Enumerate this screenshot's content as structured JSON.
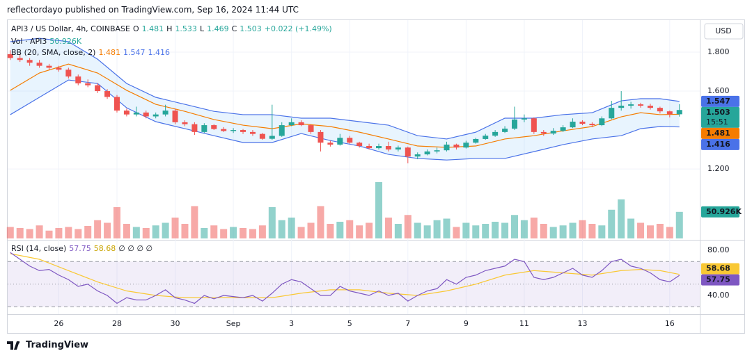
{
  "header": {
    "publisher": "reflectordayo published on TradingView.com, Sep 16, 2024 11:44 UTC",
    "footer": "TradingView"
  },
  "chart_data": {
    "type": "candlestick",
    "title": "API3 / US Dollar, 4h, COINBASE",
    "ohlc_labels": [
      "O",
      "H",
      "L",
      "C"
    ],
    "change": "+0.022 (+1.49%)",
    "currency": "USD",
    "countdown": "15:51",
    "grid": true,
    "x": [
      0,
      1,
      2,
      3,
      4,
      5,
      6,
      7,
      8,
      9,
      10,
      11,
      12,
      13,
      14,
      15,
      16,
      17,
      18,
      19,
      20,
      21,
      22,
      23,
      24,
      25,
      26,
      27,
      28,
      29,
      30,
      31,
      32,
      33,
      34,
      35,
      36,
      37,
      38,
      39,
      40,
      41,
      42,
      43,
      44,
      45,
      46,
      47,
      48,
      49,
      50,
      51,
      52,
      53,
      54,
      55,
      56,
      57,
      58,
      59,
      60,
      61,
      62,
      63,
      64,
      65,
      66,
      67,
      68,
      69
    ],
    "xlim": [
      -0.2,
      71.1
    ],
    "xticks": [
      {
        "value": 5,
        "label": "26"
      },
      {
        "value": 11,
        "label": "28"
      },
      {
        "value": 17,
        "label": "30"
      },
      {
        "value": 23,
        "label": "Sep"
      },
      {
        "value": 29,
        "label": "3"
      },
      {
        "value": 35,
        "label": "5"
      },
      {
        "value": 41,
        "label": "7"
      },
      {
        "value": 47,
        "label": "9"
      },
      {
        "value": 53,
        "label": "11"
      },
      {
        "value": 59,
        "label": "13"
      },
      {
        "value": 68,
        "label": "16"
      }
    ],
    "open": [
      1.79,
      1.77,
      1.76,
      1.746,
      1.73,
      1.72,
      1.71,
      1.675,
      1.64,
      1.63,
      1.6,
      1.57,
      1.5,
      1.48,
      1.49,
      1.47,
      1.48,
      1.5,
      1.44,
      1.43,
      1.39,
      1.425,
      1.405,
      1.395,
      1.4,
      1.39,
      1.38,
      1.355,
      1.37,
      1.425,
      1.44,
      1.425,
      1.39,
      1.335,
      1.325,
      1.36,
      1.335,
      1.318,
      1.307,
      1.318,
      1.3,
      1.31,
      1.264,
      1.275,
      1.29,
      1.296,
      1.325,
      1.31,
      1.335,
      1.354,
      1.371,
      1.39,
      1.407,
      1.454,
      1.46,
      1.39,
      1.382,
      1.396,
      1.414,
      1.443,
      1.432,
      1.425,
      1.46,
      1.514,
      1.525,
      1.532,
      1.525,
      1.514,
      1.496,
      1.481
    ],
    "high": [
      1.81,
      1.79,
      1.77,
      1.76,
      1.74,
      1.73,
      1.72,
      1.685,
      1.66,
      1.64,
      1.61,
      1.58,
      1.51,
      1.52,
      1.5,
      1.49,
      1.53,
      1.51,
      1.45,
      1.44,
      1.435,
      1.43,
      1.415,
      1.41,
      1.405,
      1.4,
      1.385,
      1.53,
      1.44,
      1.46,
      1.45,
      1.43,
      1.4,
      1.345,
      1.38,
      1.37,
      1.34,
      1.33,
      1.33,
      1.34,
      1.32,
      1.315,
      1.285,
      1.3,
      1.31,
      1.34,
      1.33,
      1.345,
      1.36,
      1.38,
      1.4,
      1.42,
      1.52,
      1.48,
      1.465,
      1.4,
      1.41,
      1.425,
      1.46,
      1.45,
      1.44,
      1.47,
      1.55,
      1.6,
      1.545,
      1.54,
      1.535,
      1.52,
      1.5,
      1.533
    ],
    "low": [
      1.76,
      1.75,
      1.73,
      1.72,
      1.71,
      1.7,
      1.665,
      1.63,
      1.62,
      1.59,
      1.56,
      1.49,
      1.47,
      1.47,
      1.46,
      1.46,
      1.47,
      1.43,
      1.42,
      1.375,
      1.385,
      1.4,
      1.39,
      1.385,
      1.38,
      1.37,
      1.35,
      1.35,
      1.365,
      1.42,
      1.42,
      1.38,
      1.29,
      1.315,
      1.32,
      1.33,
      1.31,
      1.3,
      1.3,
      1.29,
      1.29,
      1.229,
      1.25,
      1.27,
      1.28,
      1.29,
      1.3,
      1.305,
      1.33,
      1.35,
      1.365,
      1.385,
      1.4,
      1.44,
      1.38,
      1.37,
      1.375,
      1.39,
      1.41,
      1.425,
      1.415,
      1.42,
      1.455,
      1.5,
      1.51,
      1.515,
      1.505,
      1.485,
      1.465,
      1.469
    ],
    "close": [
      1.77,
      1.76,
      1.746,
      1.73,
      1.72,
      1.71,
      1.675,
      1.64,
      1.63,
      1.6,
      1.57,
      1.5,
      1.48,
      1.49,
      1.47,
      1.48,
      1.5,
      1.44,
      1.43,
      1.39,
      1.425,
      1.405,
      1.395,
      1.4,
      1.39,
      1.38,
      1.355,
      1.37,
      1.425,
      1.44,
      1.425,
      1.39,
      1.335,
      1.325,
      1.36,
      1.335,
      1.318,
      1.307,
      1.318,
      1.3,
      1.31,
      1.264,
      1.275,
      1.29,
      1.296,
      1.325,
      1.31,
      1.335,
      1.354,
      1.371,
      1.39,
      1.407,
      1.454,
      1.46,
      1.39,
      1.382,
      1.396,
      1.414,
      1.443,
      1.432,
      1.425,
      1.46,
      1.514,
      1.525,
      1.532,
      1.525,
      1.514,
      1.496,
      1.481,
      1.503
    ],
    "up_color": "#26a69a",
    "down_color": "#ef5350",
    "ylim": [
      0.836,
      1.968
    ],
    "yticks": [
      {
        "value": 1.2,
        "label": "1.200"
      },
      {
        "value": 1.6,
        "label": "1.600"
      },
      {
        "value": 1.8,
        "label": "1.800"
      }
    ],
    "volume": {
      "name": "Vol · API3",
      "ylim": [
        0,
        140
      ],
      "values": [
        22,
        20,
        18,
        25,
        15,
        20,
        22,
        18,
        24,
        35,
        30,
        60,
        28,
        22,
        20,
        25,
        30,
        40,
        28,
        62,
        20,
        25,
        18,
        22,
        20,
        18,
        25,
        60,
        35,
        40,
        22,
        30,
        62,
        28,
        32,
        35,
        25,
        30,
        108,
        40,
        28,
        45,
        30,
        25,
        35,
        38,
        22,
        30,
        25,
        28,
        32,
        30,
        45,
        35,
        40,
        28,
        22,
        25,
        30,
        35,
        28,
        25,
        55,
        75,
        38,
        30,
        25,
        28,
        22,
        50.926
      ],
      "value_labels": [
        null,
        null,
        null,
        null,
        null,
        null,
        null,
        null,
        null,
        null,
        null,
        null,
        null,
        null,
        null,
        null,
        null,
        null,
        null,
        null,
        null,
        null,
        null,
        null,
        null,
        null,
        null,
        null,
        null,
        null,
        null,
        null,
        null,
        null,
        null,
        null,
        null,
        null,
        null,
        null,
        null,
        null,
        null,
        null,
        null,
        null,
        null,
        null,
        null,
        null,
        null,
        null,
        null,
        null,
        null,
        null,
        null,
        null,
        null,
        null,
        null,
        null,
        null,
        null,
        null,
        null,
        null,
        null,
        null,
        "50.926K"
      ]
    },
    "bollinger": {
      "name": "BB (20, SMA, close, 2)",
      "basis_color": "#f57c00",
      "band_color": "#4a72e8",
      "x": [
        0,
        3,
        6,
        9,
        12,
        15,
        18,
        21,
        24,
        27,
        30,
        33,
        36,
        39,
        42,
        45,
        48,
        51,
        54,
        57,
        60,
        63,
        65,
        67,
        69
      ],
      "upper": [
        1.854,
        1.871,
        1.854,
        1.764,
        1.639,
        1.568,
        1.532,
        1.496,
        1.479,
        1.479,
        1.461,
        1.461,
        1.443,
        1.425,
        1.371,
        1.354,
        1.389,
        1.461,
        1.461,
        1.479,
        1.489,
        1.55,
        1.561,
        1.561,
        1.547
      ],
      "basis": [
        1.604,
        1.693,
        1.739,
        1.693,
        1.604,
        1.532,
        1.496,
        1.454,
        1.425,
        1.407,
        1.432,
        1.418,
        1.389,
        1.354,
        1.318,
        1.311,
        1.318,
        1.354,
        1.371,
        1.396,
        1.418,
        1.468,
        1.489,
        1.479,
        1.481
      ],
      "lower": [
        1.479,
        1.568,
        1.657,
        1.639,
        1.514,
        1.443,
        1.407,
        1.371,
        1.336,
        1.336,
        1.382,
        1.346,
        1.318,
        1.275,
        1.254,
        1.246,
        1.254,
        1.254,
        1.289,
        1.325,
        1.354,
        1.371,
        1.407,
        1.418,
        1.416
      ]
    },
    "rsi": {
      "name": "RSI (14, close)",
      "color": "#7e57c2",
      "ma_color": "#f9c834",
      "extra": "∅ ∅ ∅ ∅",
      "ylim": [
        23.4,
        88
      ],
      "yticks": [
        {
          "value": 40,
          "label": "40.00"
        },
        {
          "value": 80,
          "label": "80.00"
        }
      ],
      "levels": [
        30,
        50,
        70
      ],
      "values": [
        78,
        72,
        66,
        62,
        63,
        58,
        54,
        48,
        50,
        44,
        40,
        33,
        38,
        36,
        36,
        40,
        45,
        38,
        36,
        33,
        40,
        37,
        40,
        39,
        38,
        40,
        35,
        42,
        50,
        54,
        52,
        46,
        40,
        40,
        48,
        44,
        42,
        40,
        44,
        40,
        42,
        35,
        40,
        44,
        46,
        54,
        50,
        56,
        58,
        62,
        64,
        66,
        72,
        70,
        56,
        54,
        56,
        60,
        64,
        58,
        56,
        62,
        70,
        72,
        66,
        64,
        60,
        54,
        52,
        57.75
      ],
      "ma_x": [
        0,
        3,
        6,
        9,
        12,
        15,
        18,
        21,
        24,
        27,
        30,
        33,
        36,
        39,
        42,
        45,
        48,
        51,
        54,
        57,
        60,
        63,
        65,
        67,
        69
      ],
      "ma": [
        77,
        72,
        62,
        52,
        44,
        40,
        38,
        38,
        38,
        38,
        42,
        45,
        45,
        42,
        40,
        44,
        50,
        58,
        62,
        60,
        58,
        62,
        63,
        62,
        58.68
      ]
    }
  }
}
